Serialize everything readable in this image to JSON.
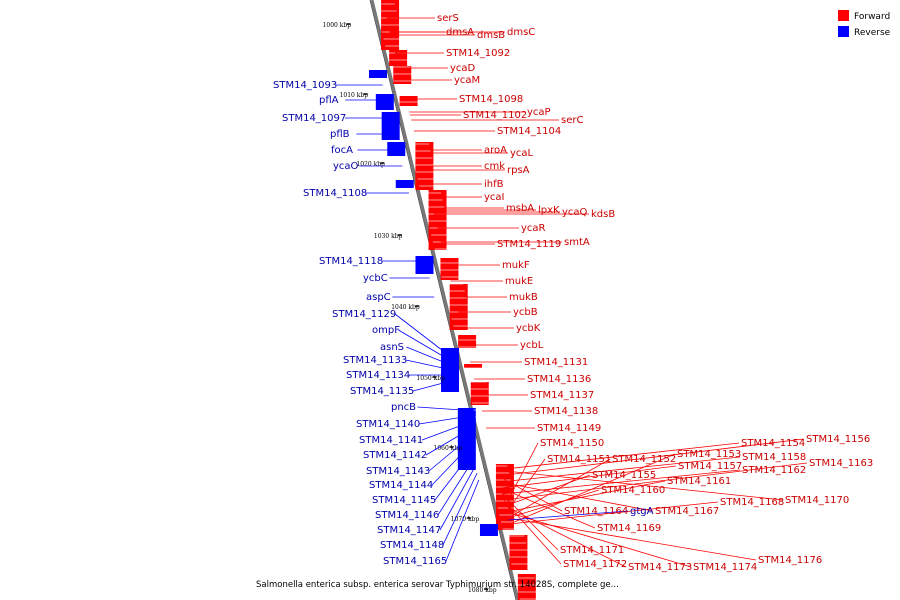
{
  "caption": "Salmonella enterica subsp. enterica serovar Typhimurium str. 14028S, complete ge...",
  "legend": [
    {
      "label": "Forward",
      "color": "#ff0000"
    },
    {
      "label": "Reverse",
      "color": "#0000ff"
    }
  ],
  "colors": {
    "forward": "#ff0000",
    "reverse": "#0000ff",
    "axis": "#888888"
  },
  "kbp_marks": [
    "1000 kbp",
    "1010 kbp",
    "1020 kbp",
    "1030 kbp",
    "1040 kbp",
    "1050 kbp",
    "1060 kbp",
    "1070 kbp",
    "1080 kbp"
  ],
  "forward_genes": [
    "serS",
    "dmsA",
    "dmsB",
    "dmsC",
    "STM14_1092",
    "ycaD",
    "ycaM",
    "STM14_1098",
    "STM14_1102",
    "ycaP",
    "serC",
    "STM14_1104",
    "aroA",
    "ycaL",
    "cmk",
    "rpsA",
    "ihfB",
    "ycaI",
    "msbA",
    "lpxK",
    "ycaQ",
    "kdsB",
    "ycaR",
    "STM14_1119",
    "smtA",
    "mukF",
    "mukE",
    "mukB",
    "ycbB",
    "ycbK",
    "ycbL",
    "STM14_1131",
    "STM14_1136",
    "STM14_1137",
    "STM14_1138",
    "STM14_1149",
    "STM14_1150",
    "STM14_1151",
    "STM14_1152",
    "STM14_1153",
    "STM14_1154",
    "STM14_1156",
    "STM14_1158",
    "STM14_1157",
    "STM14_1162",
    "STM14_1163",
    "STM14_1155",
    "STM14_1161",
    "STM14_1160",
    "STM14_1168",
    "STM14_1170",
    "STM14_1164",
    "STM14_1167",
    "STM14_1169",
    "STM14_1171",
    "STM14_1172",
    "STM14_1173",
    "STM14_1174",
    "STM14_1176"
  ],
  "reverse_genes": [
    "STM14_1093",
    "pflA",
    "STM14_1097",
    "pflB",
    "focA",
    "ycaO",
    "STM14_1108",
    "STM14_1118",
    "ycbC",
    "aspC",
    "STM14_1129",
    "ompF",
    "asnS",
    "STM14_1133",
    "STM14_1134",
    "STM14_1135",
    "pncB",
    "STM14_1140",
    "STM14_1141",
    "STM14_1142",
    "STM14_1143",
    "STM14_1144",
    "STM14_1145",
    "STM14_1146",
    "STM14_1147",
    "STM14_1148",
    "STM14_1165",
    "gtgA"
  ]
}
